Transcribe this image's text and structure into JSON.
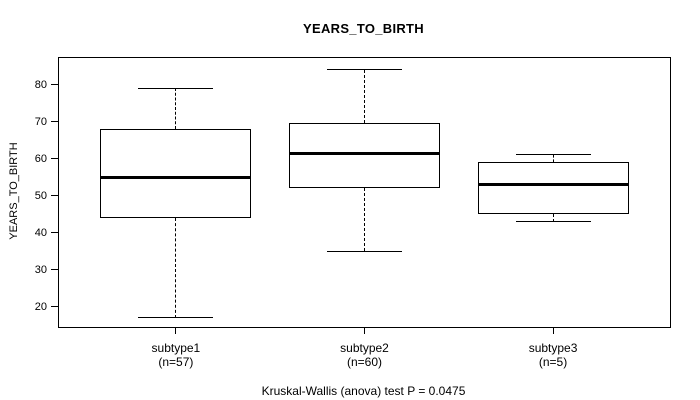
{
  "chart_data": {
    "type": "boxplot",
    "title": "YEARS_TO_BIRTH",
    "ylabel": "YEARS_TO_BIRTH",
    "caption": "Kruskal-Wallis (anova) test P = 0.0475",
    "yticks": [
      20,
      30,
      40,
      50,
      60,
      70,
      80
    ],
    "ylim": [
      14.5,
      87.2
    ],
    "grid": false,
    "legend": "none",
    "categories": [
      "subtype1",
      "subtype2",
      "subtype3"
    ],
    "series": [
      {
        "label": "subtype1",
        "n": 57,
        "n_label": "(n=57)",
        "whisker_low": 17,
        "q1": 44,
        "median": 55,
        "q3": 68,
        "whisker_high": 79
      },
      {
        "label": "subtype2",
        "n": 60,
        "n_label": "(n=60)",
        "whisker_low": 35,
        "q1": 52,
        "median": 61.5,
        "q3": 69.5,
        "whisker_high": 84
      },
      {
        "label": "subtype3",
        "n": 5,
        "n_label": "(n=5)",
        "whisker_low": 43,
        "q1": 45,
        "median": 53,
        "q3": 59,
        "whisker_high": 61
      }
    ],
    "colors": {
      "line": "#000000",
      "text": "#000000",
      "background": "#ffffff"
    }
  }
}
